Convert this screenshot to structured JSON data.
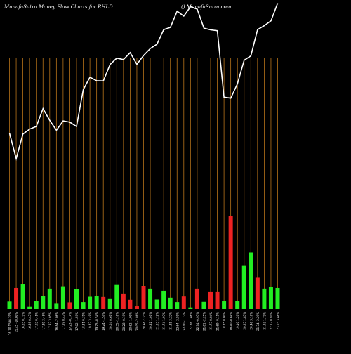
{
  "header": {
    "title": "MunafaSutra  Money Flow  Charts for RHLD",
    "brand": "() MunafaSutra.com"
  },
  "colors": {
    "background": "#000000",
    "grid_line": "#b8741a",
    "price_line": "#ffffff",
    "bar_up": "#22ee22",
    "bar_down": "#ee2222",
    "label": "#ffffff"
  },
  "chart_data": {
    "type": "bar",
    "title": "MunafaSutra  Money Flow  Charts for RHLD",
    "xlabel": "",
    "ylabel": "",
    "grid": true,
    "categories": [
      "16.70 1556.20%",
      "15.45 -10.00%",
      "16.65 0.19%",
      "16.89 0.45%",
      "17.02 0.45%",
      "17.89 3.48%",
      "17.32 3.05%",
      "16.84 -2.06%",
      "17.29 0.43%",
      "17.23 -0.14%",
      "17.02 -1.59%",
      "18.81 0.31%",
      "19.42 3.49%",
      "19.25 -0.54%",
      "19.24 -1.54%",
      "20.04 0.61%",
      "20.35 -1.18%",
      "20.28 -0.19%",
      "20.62 -1.09%",
      "20.05 -2.86%",
      "20.48 2.33%",
      "20.82 1.01%",
      "21.03 1.12%",
      "21.74 1.97%",
      "21.85 3.22%",
      "22.64 -2.59%",
      "22.40 -1.73%",
      "22.86 1.86%",
      "22.74 -0.95%",
      "21.81 -2.25%",
      "21.73 0.04%",
      "21.69 -0.11%",
      "18.45 0.00%",
      "18.40 -0.64%",
      "19.10 1.20%",
      "20.25 1.85%",
      "20.46 3.16%",
      "21.74 -2.29%",
      "21.93 1.73%",
      "22.17 0.91%",
      "23.03 3.88%"
    ],
    "series": [
      {
        "values": [
          1.62,
          4.55,
          5.3,
          0.5,
          1.75,
          2.75,
          4.41,
          1.15,
          4.91,
          1.45,
          4.25,
          1.5,
          2.65,
          2.75,
          2.6,
          2.3,
          5.2,
          3.35,
          2.0,
          0.6,
          5.0,
          4.41,
          2.05,
          3.95,
          2.45,
          1.5,
          2.7,
          0.35,
          4.41,
          1.55,
          3.65,
          3.65,
          1.7,
          20.0,
          1.75,
          9.3,
          12.2,
          6.75,
          4.41,
          4.75,
          4.55
        ],
        "directions": [
          "up",
          "down",
          "up",
          "up",
          "up",
          "up",
          "up",
          "up",
          "up",
          "down",
          "up",
          "up",
          "up",
          "up",
          "down",
          "up",
          "up",
          "down",
          "down",
          "down",
          "down",
          "up",
          "up",
          "up",
          "up",
          "up",
          "down",
          "up",
          "down",
          "up",
          "down",
          "down",
          "up",
          "down",
          "up",
          "up",
          "up",
          "down",
          "up",
          "up",
          "up"
        ]
      },
      {
        "type": "line",
        "values": [
          16.7,
          15.45,
          16.65,
          16.89,
          17.02,
          17.89,
          17.32,
          16.84,
          17.29,
          17.23,
          17.02,
          18.81,
          19.42,
          19.25,
          19.24,
          20.04,
          20.35,
          20.28,
          20.62,
          20.05,
          20.48,
          20.82,
          21.03,
          21.74,
          21.85,
          22.64,
          22.4,
          22.86,
          22.74,
          21.81,
          21.73,
          21.69,
          18.45,
          18.4,
          19.1,
          20.25,
          20.46,
          21.74,
          21.93,
          22.17,
          23.03
        ]
      }
    ],
    "price_range": [
      10,
      25
    ],
    "volume_range": [
      0,
      24
    ]
  }
}
